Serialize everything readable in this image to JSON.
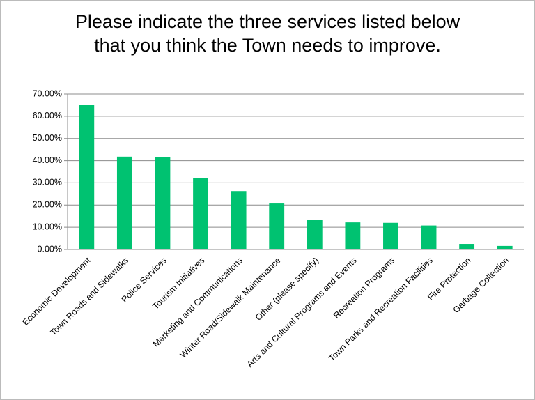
{
  "chart_data": {
    "type": "bar",
    "title": "Please indicate the three services listed below that you think the Town needs to improve.",
    "categories": [
      "Economic Development",
      "Town Roads and Sidewalks",
      "Police Services",
      "Tourism Initiatives",
      "Marketing and Communications",
      "Winter Road/Sidewalk Maintenance",
      "Other (please specify)",
      "Arts and Cultural Programs and Events",
      "Recreation Programs",
      "Town Parks and Recreation Facilities",
      "Fire Protection",
      "Garbage Collection"
    ],
    "values": [
      65.2,
      41.8,
      41.5,
      32.1,
      26.3,
      20.7,
      13.2,
      12.2,
      12,
      10.8,
      2.5,
      1.6
    ],
    "color": "#00c271",
    "ylim": [
      0,
      70
    ],
    "yticks": [
      {
        "value": 0,
        "label": "0.00%"
      },
      {
        "value": 10,
        "label": "10.00%"
      },
      {
        "value": 20,
        "label": "20.00%"
      },
      {
        "value": 30,
        "label": "30.00%"
      },
      {
        "value": 40,
        "label": "40.00%"
      },
      {
        "value": 50,
        "label": "50.00%"
      },
      {
        "value": 60,
        "label": "60.00%"
      },
      {
        "value": 70,
        "label": "70.00%"
      }
    ],
    "grid": true
  }
}
